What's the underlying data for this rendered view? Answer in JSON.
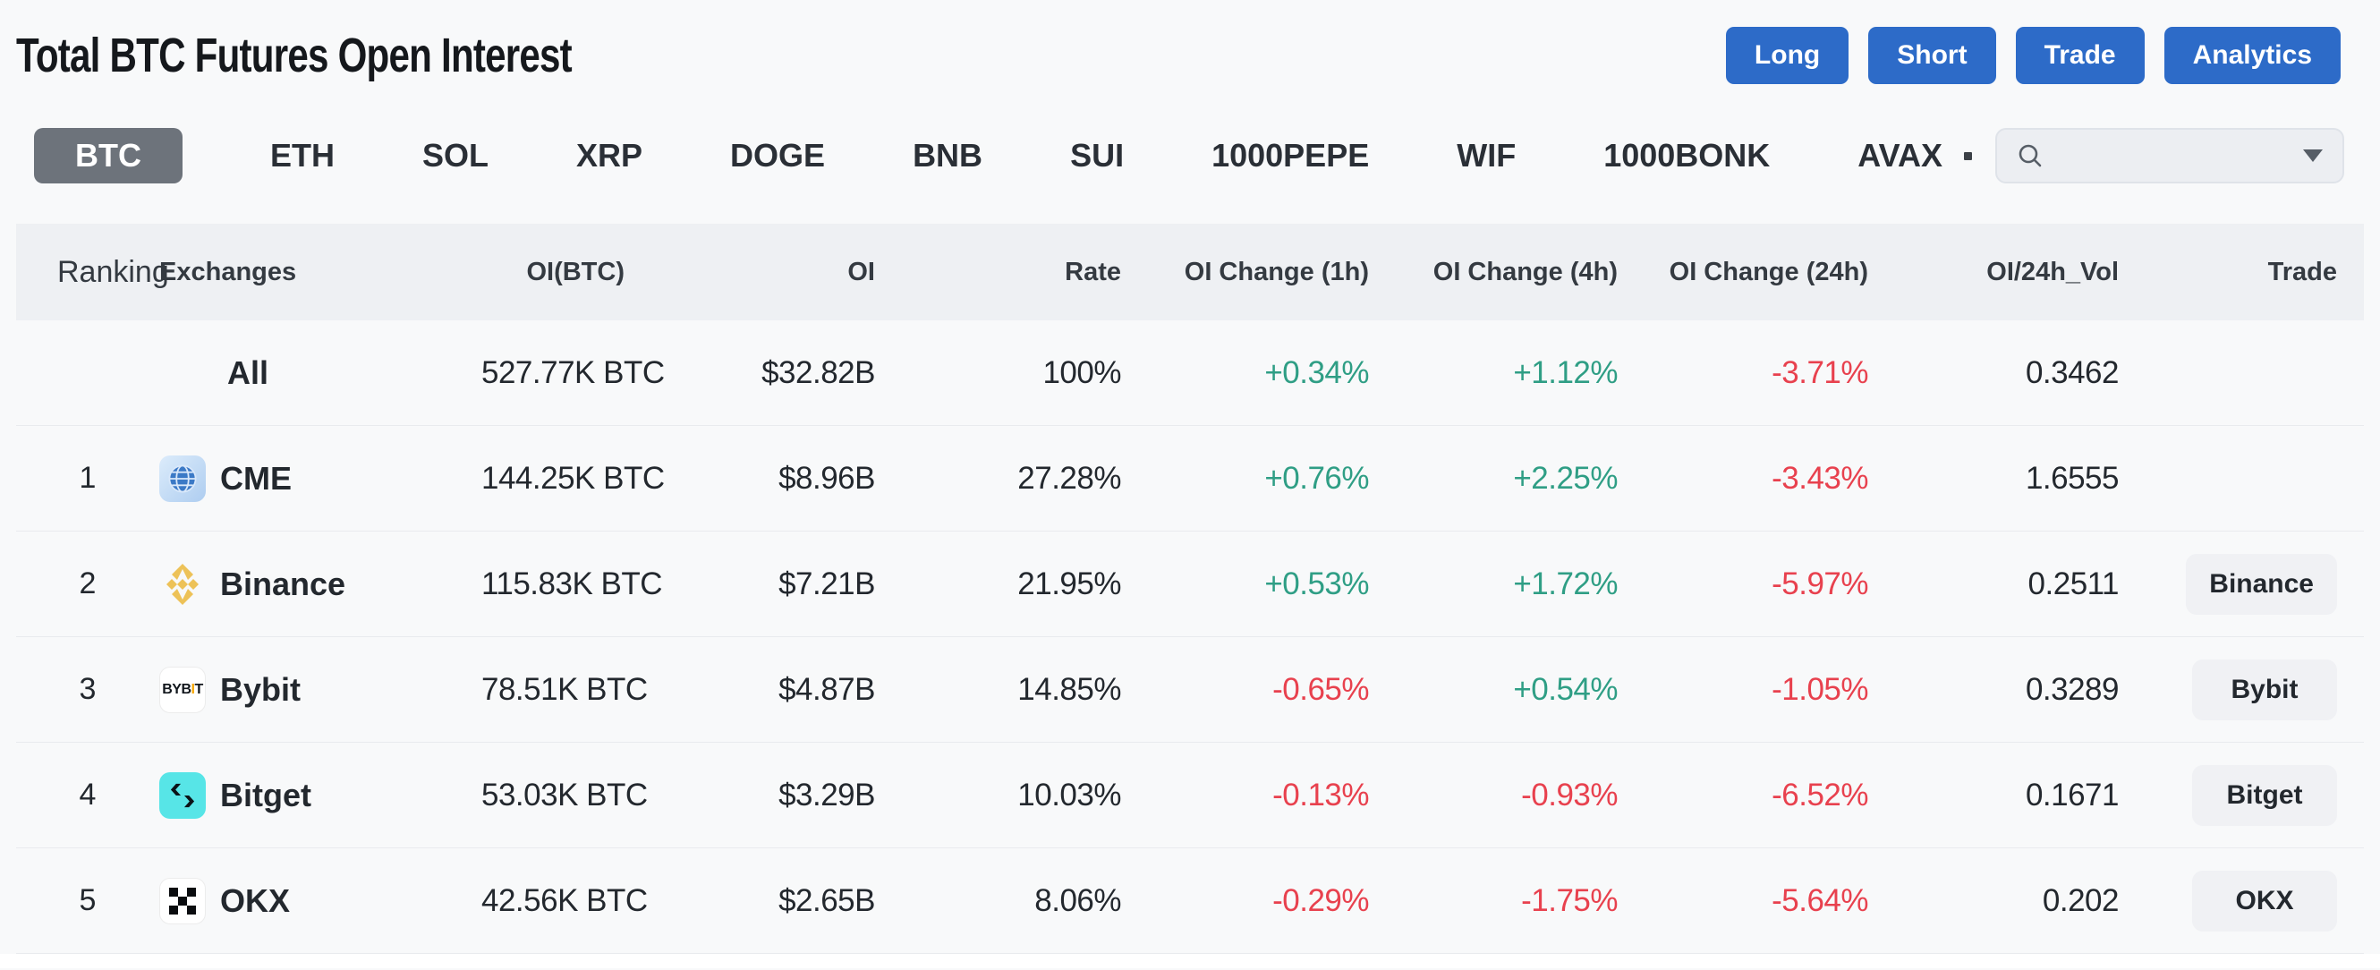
{
  "page": {
    "title": "Total BTC Futures Open Interest"
  },
  "actions": [
    {
      "label": "Long"
    },
    {
      "label": "Short"
    },
    {
      "label": "Trade"
    },
    {
      "label": "Analytics"
    }
  ],
  "tabs": {
    "selected": "BTC",
    "items": [
      "BTC",
      "ETH",
      "SOL",
      "XRP",
      "DOGE",
      "BNB",
      "SUI",
      "1000PEPE",
      "WIF",
      "1000BONK",
      "AVAX"
    ]
  },
  "search": {
    "placeholder": "",
    "value": ""
  },
  "table": {
    "columns": [
      "Ranking",
      "Exchanges",
      "OI(BTC)",
      "OI",
      "Rate",
      "OI Change (1h)",
      "OI Change (4h)",
      "OI Change (24h)",
      "OI/24h_Vol",
      "Trade"
    ],
    "rows": [
      {
        "ranking": "",
        "name": "All",
        "icon": null,
        "oi_btc": "527.77K BTC",
        "oi": "$32.82B",
        "rate": "100%",
        "change_1h": "+0.34%",
        "change_4h": "+1.12%",
        "change_24h": "-3.71%",
        "oi_24h_vol": "0.3462",
        "trade": null
      },
      {
        "ranking": "1",
        "name": "CME",
        "icon": "cme-icon",
        "oi_btc": "144.25K BTC",
        "oi": "$8.96B",
        "rate": "27.28%",
        "change_1h": "+0.76%",
        "change_4h": "+2.25%",
        "change_24h": "-3.43%",
        "oi_24h_vol": "1.6555",
        "trade": null
      },
      {
        "ranking": "2",
        "name": "Binance",
        "icon": "binance-icon",
        "oi_btc": "115.83K BTC",
        "oi": "$7.21B",
        "rate": "21.95%",
        "change_1h": "+0.53%",
        "change_4h": "+1.72%",
        "change_24h": "-5.97%",
        "oi_24h_vol": "0.2511",
        "trade": "Binance"
      },
      {
        "ranking": "3",
        "name": "Bybit",
        "icon": "bybit-icon",
        "oi_btc": "78.51K BTC",
        "oi": "$4.87B",
        "rate": "14.85%",
        "change_1h": "-0.65%",
        "change_4h": "+0.54%",
        "change_24h": "-1.05%",
        "oi_24h_vol": "0.3289",
        "trade": "Bybit"
      },
      {
        "ranking": "4",
        "name": "Bitget",
        "icon": "bitget-icon",
        "oi_btc": "53.03K BTC",
        "oi": "$3.29B",
        "rate": "10.03%",
        "change_1h": "-0.13%",
        "change_4h": "-0.93%",
        "change_24h": "-6.52%",
        "oi_24h_vol": "0.1671",
        "trade": "Bitget"
      },
      {
        "ranking": "5",
        "name": "OKX",
        "icon": "okx-icon",
        "oi_btc": "42.56K BTC",
        "oi": "$2.65B",
        "rate": "8.06%",
        "change_1h": "-0.29%",
        "change_4h": "-1.75%",
        "change_24h": "-5.64%",
        "oi_24h_vol": "0.202",
        "trade": "OKX"
      }
    ]
  },
  "colors": {
    "page_bg": "#f8f9fa",
    "accent_blue": "#2d6bc8",
    "positive_green": "#2f9e85",
    "negative_red": "#e8414e",
    "text_dark": "#23282e",
    "selected_tab_bg": "#6d737b",
    "header_row_bg": "#eef0f3",
    "divider": "#e9ebee",
    "trade_button_bg": "#f0f1f4",
    "search_bg": "#eceef2",
    "binance_gold": "#edc258",
    "bybit_orange": "#f7a600",
    "bitget_cyan": "#57e5e7"
  }
}
